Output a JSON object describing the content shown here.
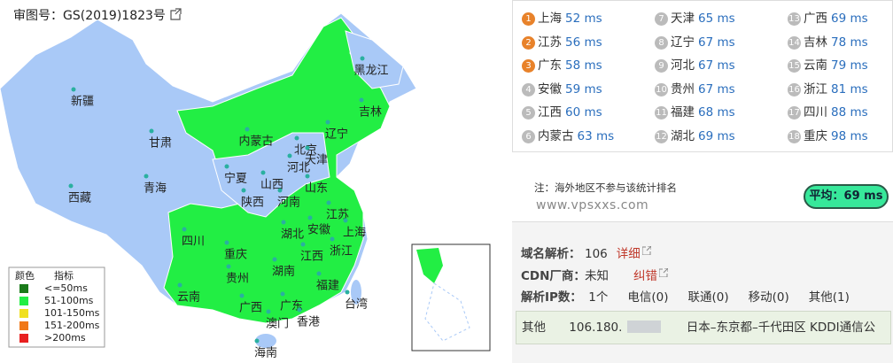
{
  "map": {
    "approval": "审图号：GS(2019)1823号",
    "regions": [
      "新疆",
      "西藏",
      "青海",
      "甘肃",
      "内蒙古",
      "黑龙江",
      "吉林",
      "辽宁",
      "北京",
      "天津",
      "河北",
      "山西",
      "宁夏",
      "陕西",
      "河南",
      "山东",
      "江苏",
      "上海",
      "安徽",
      "湖北",
      "四川",
      "重庆",
      "浙江",
      "江西",
      "湖南",
      "贵州",
      "福建",
      "云南",
      "广西",
      "广东",
      "台湾",
      "澳门",
      "香港",
      "海南"
    ],
    "legend": {
      "headers": [
        "颜色",
        "指标"
      ],
      "items": [
        {
          "label": "<=50ms",
          "color": "#1a7a1a"
        },
        {
          "label": "51-100ms",
          "color": "#22ee44"
        },
        {
          "label": "101-150ms",
          "color": "#f0e020"
        },
        {
          "label": "151-200ms",
          "color": "#f07818"
        },
        {
          "label": ">200ms",
          "color": "#e82020"
        }
      ]
    }
  },
  "ranking": [
    {
      "rank": "1",
      "name": "上海",
      "latency": "52 ms"
    },
    {
      "rank": "2",
      "name": "江苏",
      "latency": "56 ms"
    },
    {
      "rank": "3",
      "name": "广东",
      "latency": "58 ms"
    },
    {
      "rank": "4",
      "name": "安徽",
      "latency": "59 ms"
    },
    {
      "rank": "5",
      "name": "江西",
      "latency": "60 ms"
    },
    {
      "rank": "6",
      "name": "内蒙古",
      "latency": "63 ms"
    },
    {
      "rank": "7",
      "name": "天津",
      "latency": "65 ms"
    },
    {
      "rank": "8",
      "name": "辽宁",
      "latency": "67 ms"
    },
    {
      "rank": "9",
      "name": "河北",
      "latency": "67 ms"
    },
    {
      "rank": "10",
      "name": "贵州",
      "latency": "67 ms"
    },
    {
      "rank": "11",
      "name": "福建",
      "latency": "68 ms"
    },
    {
      "rank": "12",
      "name": "湖北",
      "latency": "69 ms"
    },
    {
      "rank": "13",
      "name": "广西",
      "latency": "69 ms"
    },
    {
      "rank": "14",
      "name": "吉林",
      "latency": "78 ms"
    },
    {
      "rank": "15",
      "name": "云南",
      "latency": "79 ms"
    },
    {
      "rank": "16",
      "name": "浙江",
      "latency": "81 ms"
    },
    {
      "rank": "17",
      "name": "四川",
      "latency": "88 ms"
    },
    {
      "rank": "18",
      "name": "重庆",
      "latency": "98 ms"
    }
  ],
  "note": "注：海外地区不参与该统计排名",
  "watermark": "www.vpsxxs.com",
  "average": "平均：69 ms",
  "dns": {
    "resolve": {
      "label": "域名解析：",
      "value": "106",
      "link": "详细"
    },
    "cdn": {
      "label": "CDN厂商：",
      "value": "未知",
      "link": "纠错"
    },
    "ips": {
      "label": "解析IP数：",
      "items": [
        "1个",
        "电信(0)",
        "联通(0)",
        "移动(0)",
        "其他(1)"
      ]
    },
    "result": {
      "type": "其他",
      "ip": "106.180.",
      "location": "日本–东京都–千代田区 KDDI通信公"
    }
  }
}
